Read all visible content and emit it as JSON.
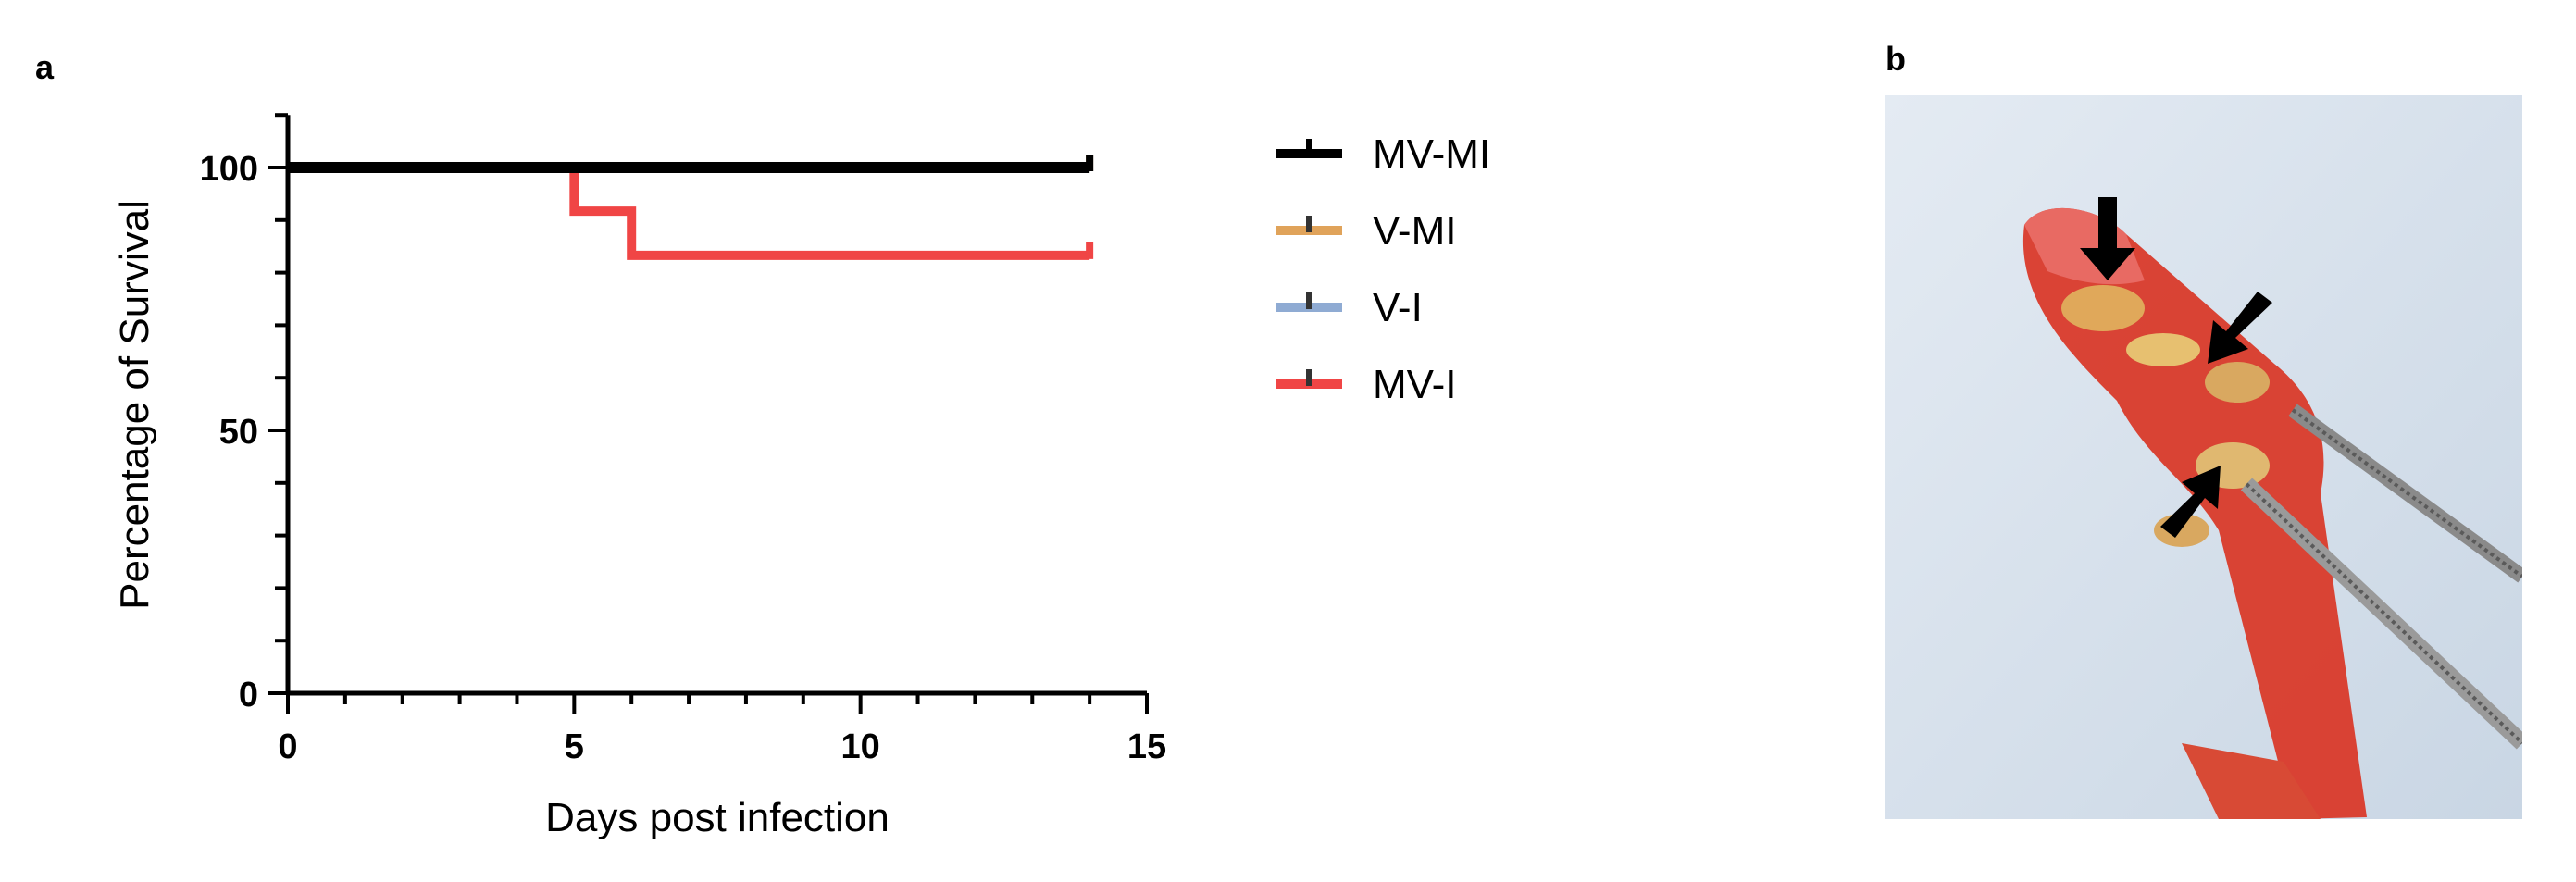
{
  "panel_labels": {
    "a": "a",
    "b": "b"
  },
  "colors": {
    "MV-MI": "#000000",
    "V-MI": "#e0a35a",
    "V-I": "#8fabd3",
    "MV-I": "#f04545",
    "axis": "#000000"
  },
  "chart_data": {
    "type": "line",
    "step": true,
    "title": "",
    "xlabel": "Days post infection",
    "ylabel": "Percentage of Survival",
    "xlim": [
      0,
      15
    ],
    "ylim": [
      0,
      110
    ],
    "xticks": [
      0,
      5,
      10,
      15
    ],
    "yticks": [
      0,
      50,
      100
    ],
    "x_minor_step": 1,
    "y_minor_step": 10,
    "legend_position": "right",
    "series": [
      {
        "name": "MV-MI",
        "x": [
          0,
          14
        ],
        "y": [
          100,
          100
        ],
        "censor_x": 14
      },
      {
        "name": "V-MI",
        "x": [
          0,
          14
        ],
        "y": [
          100,
          100
        ],
        "censor_x": 14
      },
      {
        "name": "V-I",
        "x": [
          0,
          14
        ],
        "y": [
          100,
          100
        ],
        "censor_x": 14
      },
      {
        "name": "MV-I",
        "x": [
          0,
          5,
          6,
          14
        ],
        "y": [
          100,
          91.7,
          83.3,
          83.3
        ],
        "censor_x": 14
      }
    ]
  },
  "photo": {
    "type": "dissection photograph",
    "arrow_count": 3,
    "colors": {
      "background": "#d9e3ee",
      "tissue": "#d93a2a",
      "lesion": "#e0a85a",
      "forceps": "#8a8a8a",
      "arrow": "#000000"
    }
  }
}
